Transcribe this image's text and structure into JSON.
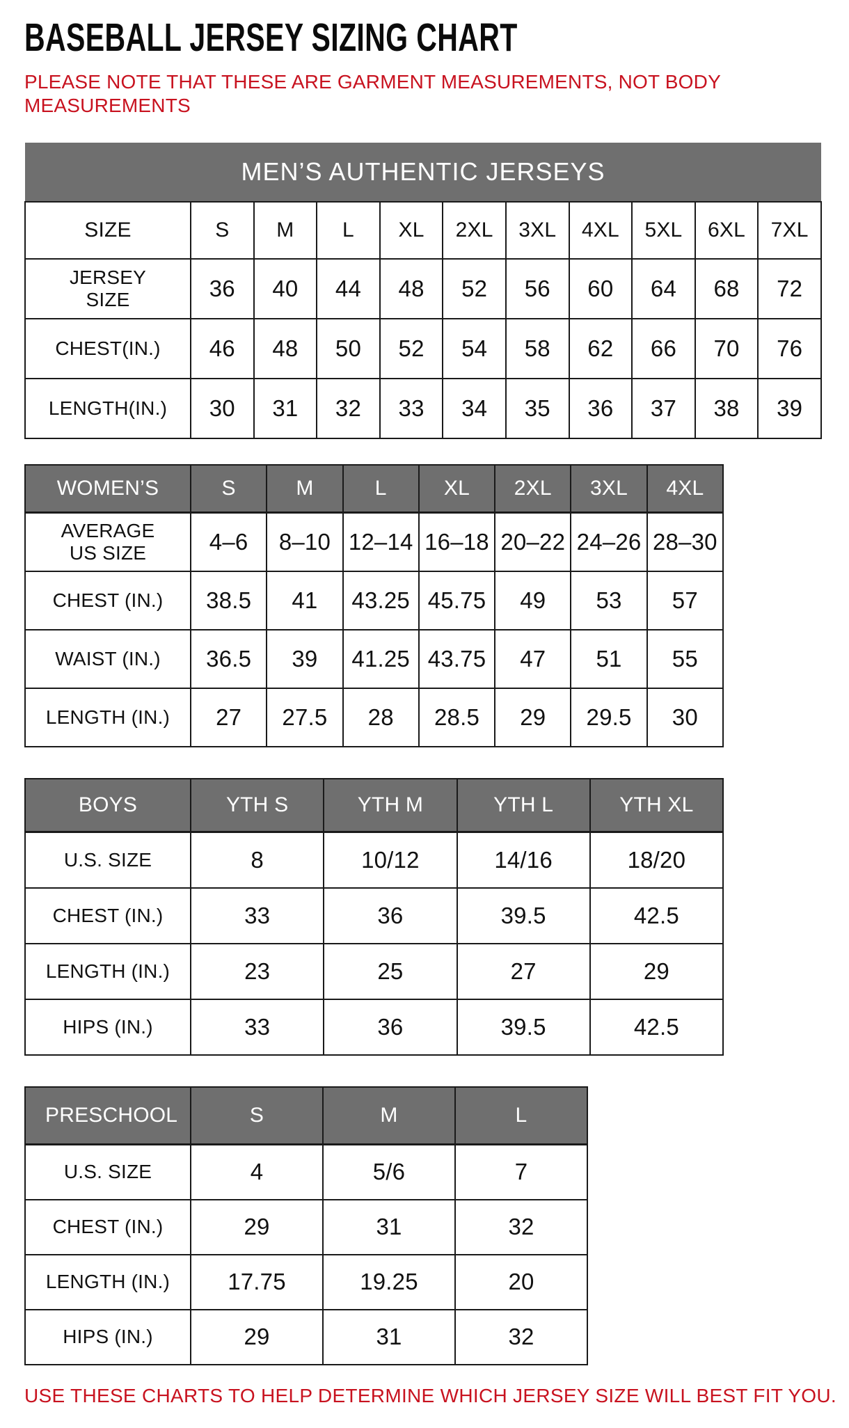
{
  "title": "BASEBALL JERSEY SIZING CHART",
  "note_lines": [
    "PLEASE NOTE THAT THESE ARE GARMENT MEASUREMENTS, NOT BODY",
    "MEASUREMENTS"
  ],
  "footer": "USE THESE CHARTS TO HELP DETERMINE WHICH JERSEY SIZE WILL BEST FIT YOU.",
  "colors": {
    "accent_red": "#c8121f",
    "header_gray": "#6f6f6f",
    "border_black": "#1a1a1a",
    "text_black": "#111111"
  },
  "tables": [
    {
      "id": "mens",
      "banner": "MEN’S AUTHENTIC JERSEYS",
      "header_style": "plain",
      "header": [
        "SIZE",
        "S",
        "M",
        "L",
        "XL",
        "2XL",
        "3XL",
        "4XL",
        "5XL",
        "6XL",
        "7XL"
      ],
      "rows": [
        {
          "label": "JERSEY SIZE",
          "values": [
            "36",
            "40",
            "44",
            "48",
            "52",
            "56",
            "60",
            "64",
            "68",
            "72"
          ]
        },
        {
          "label": "CHEST(IN.)",
          "values": [
            "46",
            "48",
            "50",
            "52",
            "54",
            "58",
            "62",
            "66",
            "70",
            "76"
          ]
        },
        {
          "label": "LENGTH(IN.)",
          "values": [
            "30",
            "31",
            "32",
            "33",
            "34",
            "35",
            "36",
            "37",
            "38",
            "39"
          ]
        }
      ]
    },
    {
      "id": "womens",
      "banner": null,
      "header_style": "gray",
      "header": [
        "WOMEN’S",
        "S",
        "M",
        "L",
        "XL",
        "2XL",
        "3XL",
        "4XL"
      ],
      "rows": [
        {
          "label": "AVERAGE US SIZE",
          "values": [
            "4–6",
            "8–10",
            "12–14",
            "16–18",
            "20–22",
            "24–26",
            "28–30"
          ]
        },
        {
          "label": "CHEST (IN.)",
          "values": [
            "38.5",
            "41",
            "43.25",
            "45.75",
            "49",
            "53",
            "57"
          ]
        },
        {
          "label": "WAIST (IN.)",
          "values": [
            "36.5",
            "39",
            "41.25",
            "43.75",
            "47",
            "51",
            "55"
          ]
        },
        {
          "label": "LENGTH (IN.)",
          "values": [
            "27",
            "27.5",
            "28",
            "28.5",
            "29",
            "29.5",
            "30"
          ]
        }
      ]
    },
    {
      "id": "boys",
      "banner": null,
      "header_style": "gray",
      "header": [
        "BOYS",
        "YTH S",
        "YTH M",
        "YTH L",
        "YTH XL"
      ],
      "rows": [
        {
          "label": "U.S. SIZE",
          "values": [
            "8",
            "10/12",
            "14/16",
            "18/20"
          ]
        },
        {
          "label": "CHEST (IN.)",
          "values": [
            "33",
            "36",
            "39.5",
            "42.5"
          ]
        },
        {
          "label": "LENGTH (IN.)",
          "values": [
            "23",
            "25",
            "27",
            "29"
          ]
        },
        {
          "label": "HIPS (IN.)",
          "values": [
            "33",
            "36",
            "39.5",
            "42.5"
          ]
        }
      ]
    },
    {
      "id": "preschool",
      "banner": null,
      "header_style": "gray",
      "header": [
        "PRESCHOOL",
        "S",
        "M",
        "L"
      ],
      "rows": [
        {
          "label": "U.S. SIZE",
          "values": [
            "4",
            "5/6",
            "7"
          ]
        },
        {
          "label": "CHEST (IN.)",
          "values": [
            "29",
            "31",
            "32"
          ]
        },
        {
          "label": "LENGTH (IN.)",
          "values": [
            "17.75",
            "19.25",
            "20"
          ]
        },
        {
          "label": "HIPS (IN.)",
          "values": [
            "29",
            "31",
            "32"
          ]
        }
      ]
    }
  ]
}
